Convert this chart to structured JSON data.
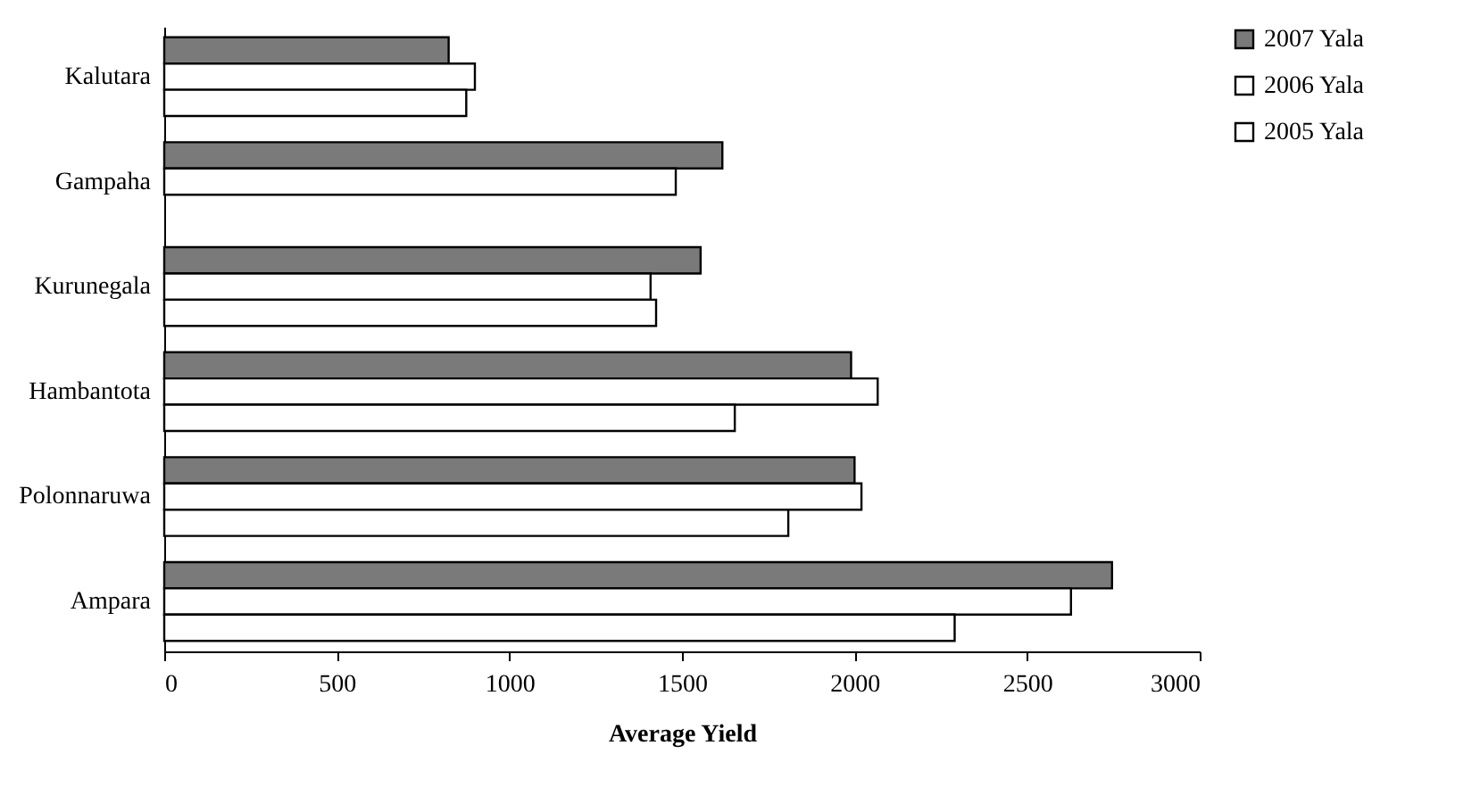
{
  "chart_data": {
    "type": "bar",
    "orientation": "horizontal",
    "xlabel": "Average Yield",
    "categories": [
      "Kalutara",
      "Gampaha",
      "Kurunegala",
      "Hambantota",
      "Polonnaruwa",
      "Ampara"
    ],
    "series": [
      {
        "name": "2007 Yala",
        "color": "#7a7a7a",
        "values": [
          824,
          1617,
          1554,
          1990,
          2000,
          2746
        ]
      },
      {
        "name": "2006 Yala",
        "color": "#ffffff",
        "values": [
          900,
          1482,
          1409,
          2067,
          2020,
          2627
        ]
      },
      {
        "name": "2005 Yala",
        "color": "#ffffff",
        "values": [
          875,
          null,
          1425,
          1653,
          1808,
          2290
        ]
      }
    ],
    "xlim": [
      0,
      3000
    ],
    "xticks": [
      0,
      500,
      1000,
      1500,
      2000,
      2500,
      3000
    ],
    "grid": false,
    "legend": "right"
  }
}
